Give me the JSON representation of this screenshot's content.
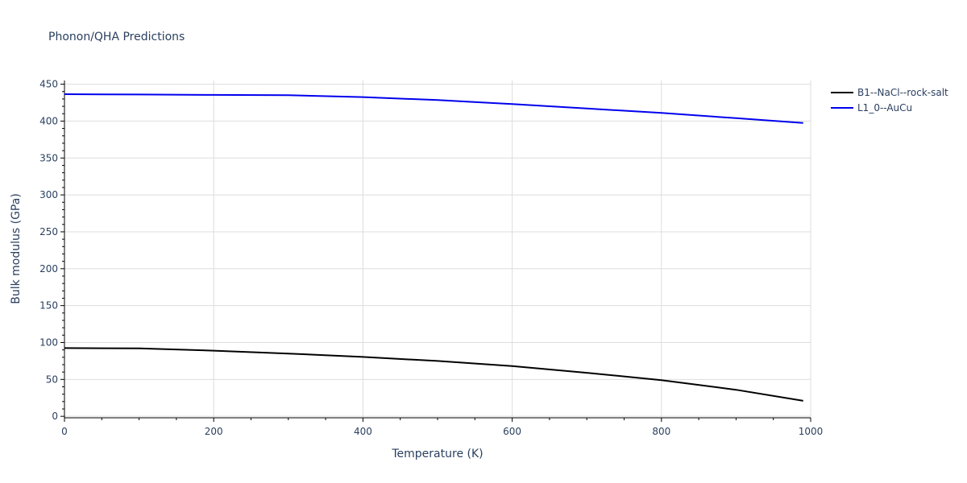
{
  "chart_data": {
    "type": "line",
    "title": "Phonon/QHA Predictions",
    "xlabel": "Temperature (K)",
    "ylabel": "Bulk modulus (GPa)",
    "xlim": [
      0,
      1000
    ],
    "ylim": [
      -2,
      455
    ],
    "xticks": [
      0,
      200,
      400,
      600,
      800,
      1000
    ],
    "yticks": [
      0,
      50,
      100,
      150,
      200,
      250,
      300,
      350,
      400,
      450
    ],
    "grid": true,
    "legend_position": "top-right",
    "series": [
      {
        "name": "B1--NaCl--rock-salt",
        "color": "#000000",
        "x": [
          0,
          100,
          200,
          300,
          400,
          500,
          600,
          700,
          800,
          900,
          990
        ],
        "y": [
          92.5,
          92,
          89,
          85,
          80.5,
          75,
          68,
          59,
          49,
          36,
          21
        ]
      },
      {
        "name": "L1_0--AuCu",
        "color": "#0000ee",
        "x": [
          0,
          100,
          200,
          300,
          400,
          500,
          600,
          700,
          800,
          900,
          990
        ],
        "y": [
          436.5,
          436,
          435.5,
          435,
          432.5,
          428.5,
          423,
          417,
          411,
          404,
          397.5
        ]
      }
    ]
  }
}
